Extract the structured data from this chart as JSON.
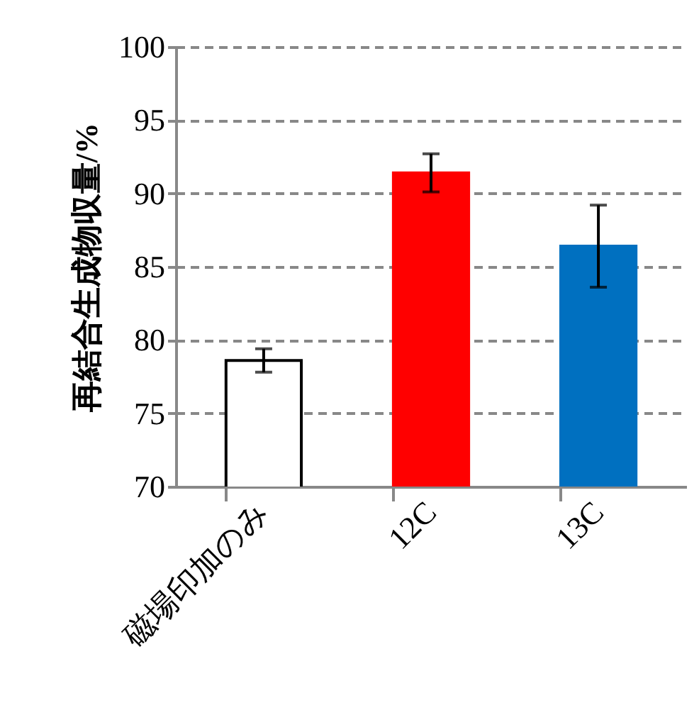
{
  "chart_data": {
    "type": "bar",
    "ylabel": "再結合生成物収量/%",
    "categories": [
      "磁場印加のみ",
      "12C",
      "13C"
    ],
    "values": [
      78.6,
      91.4,
      86.4
    ],
    "errors": [
      0.8,
      1.3,
      2.8
    ],
    "colors": [
      "#ffffff",
      "#ff0000",
      "#0070c0"
    ],
    "ylim": [
      70,
      100
    ],
    "yticks": [
      70,
      75,
      80,
      85,
      90,
      95,
      100
    ],
    "grid": "y"
  }
}
